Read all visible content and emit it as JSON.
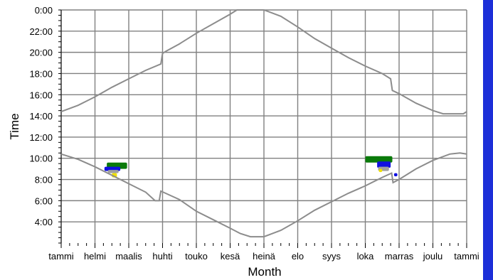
{
  "chart_data": {
    "type": "scatter",
    "xlabel": "Month",
    "ylabel": "Time",
    "x_categories": [
      "tammi",
      "helmi",
      "maalis",
      "huhti",
      "touko",
      "kesä",
      "heinä",
      "elo",
      "syys",
      "loka",
      "marras",
      "joulu",
      "tammi"
    ],
    "y_ticks": [
      "0:00",
      "22:00",
      "20:00",
      "18:00",
      "16:00",
      "14:00",
      "12:00",
      "10:00",
      "8:00",
      "6:00",
      "4:00"
    ],
    "y_tick_hours": [
      24,
      22,
      20,
      18,
      16,
      14,
      12,
      10,
      8,
      6,
      4
    ],
    "ylim": [
      2,
      24
    ],
    "xlim_month": [
      0,
      12
    ],
    "grid": true,
    "series": [
      {
        "color": "#8c8c8c",
        "points": [
          [
            0,
            14.4
          ],
          [
            0.5,
            15.0
          ],
          [
            1,
            15.8
          ],
          [
            1.5,
            16.7
          ],
          [
            2,
            17.5
          ],
          [
            2.5,
            18.3
          ],
          [
            2.95,
            18.9
          ],
          [
            3.0,
            19.9
          ],
          [
            3.1,
            20.1
          ],
          [
            3.5,
            20.8
          ],
          [
            4,
            21.8
          ],
          [
            4.5,
            22.7
          ],
          [
            5,
            23.6
          ],
          [
            5.2,
            24
          ],
          [
            6.0,
            24
          ],
          [
            6.5,
            23.4
          ],
          [
            7,
            22.4
          ],
          [
            7.5,
            21.3
          ],
          [
            8,
            20.4
          ],
          [
            8.5,
            19.5
          ],
          [
            9,
            18.7
          ],
          [
            9.5,
            18.0
          ],
          [
            9.75,
            17.5
          ],
          [
            9.8,
            16.4
          ],
          [
            10,
            16.1
          ],
          [
            10.5,
            15.2
          ],
          [
            11,
            14.5
          ],
          [
            11.3,
            14.2
          ],
          [
            11.9,
            14.2
          ],
          [
            12,
            14.4
          ]
        ]
      },
      {
        "color": "#8c8c8c",
        "points": [
          [
            0,
            10.4
          ],
          [
            0.5,
            9.9
          ],
          [
            1,
            9.2
          ],
          [
            1.5,
            8.4
          ],
          [
            2,
            7.6
          ],
          [
            2.5,
            6.8
          ],
          [
            2.78,
            6.0
          ],
          [
            2.9,
            6.0
          ],
          [
            2.95,
            6.9
          ],
          [
            3.5,
            6.1
          ],
          [
            4,
            5.0
          ],
          [
            4.5,
            4.2
          ],
          [
            5,
            3.4
          ],
          [
            5.3,
            2.9
          ],
          [
            5.6,
            2.6
          ],
          [
            6.0,
            2.6
          ],
          [
            6.5,
            3.2
          ],
          [
            7,
            4.1
          ],
          [
            7.5,
            5.1
          ],
          [
            8,
            5.9
          ],
          [
            8.5,
            6.7
          ],
          [
            9,
            7.4
          ],
          [
            9.5,
            8.2
          ],
          [
            9.78,
            8.6
          ],
          [
            9.82,
            7.7
          ],
          [
            10,
            8.0
          ],
          [
            10.5,
            9.0
          ],
          [
            11,
            9.8
          ],
          [
            11.5,
            10.4
          ],
          [
            11.8,
            10.5
          ],
          [
            12,
            10.4
          ]
        ]
      }
    ],
    "clusters": [
      {
        "color": "#0a7a0a",
        "x_range": [
          1.35,
          1.95
        ],
        "y_range": [
          9.0,
          9.6
        ]
      },
      {
        "color": "#1010e0",
        "x_range": [
          1.28,
          1.75
        ],
        "y_range": [
          8.8,
          9.2
        ]
      },
      {
        "color": "#a0a0a0",
        "x_range": [
          1.38,
          1.7
        ],
        "y_range": [
          8.6,
          8.9
        ]
      },
      {
        "color": "#f0e000",
        "x_range": [
          1.5,
          1.65
        ],
        "y_range": [
          8.2,
          8.6
        ]
      },
      {
        "color": "#0a7a0a",
        "x_range": [
          9.0,
          9.8
        ],
        "y_range": [
          9.6,
          10.2
        ]
      },
      {
        "color": "#1010e0",
        "x_range": [
          9.35,
          9.75
        ],
        "y_range": [
          9.1,
          9.7
        ]
      },
      {
        "color": "#a0a0a0",
        "x_range": [
          9.38,
          9.7
        ],
        "y_range": [
          8.8,
          9.2
        ]
      },
      {
        "color": "#f0e000",
        "x_range": [
          9.4,
          9.5
        ],
        "y_range": [
          8.7,
          9.0
        ]
      },
      {
        "color": "#1010e0",
        "x_range": [
          9.85,
          9.95
        ],
        "y_range": [
          8.3,
          8.6
        ]
      }
    ]
  }
}
